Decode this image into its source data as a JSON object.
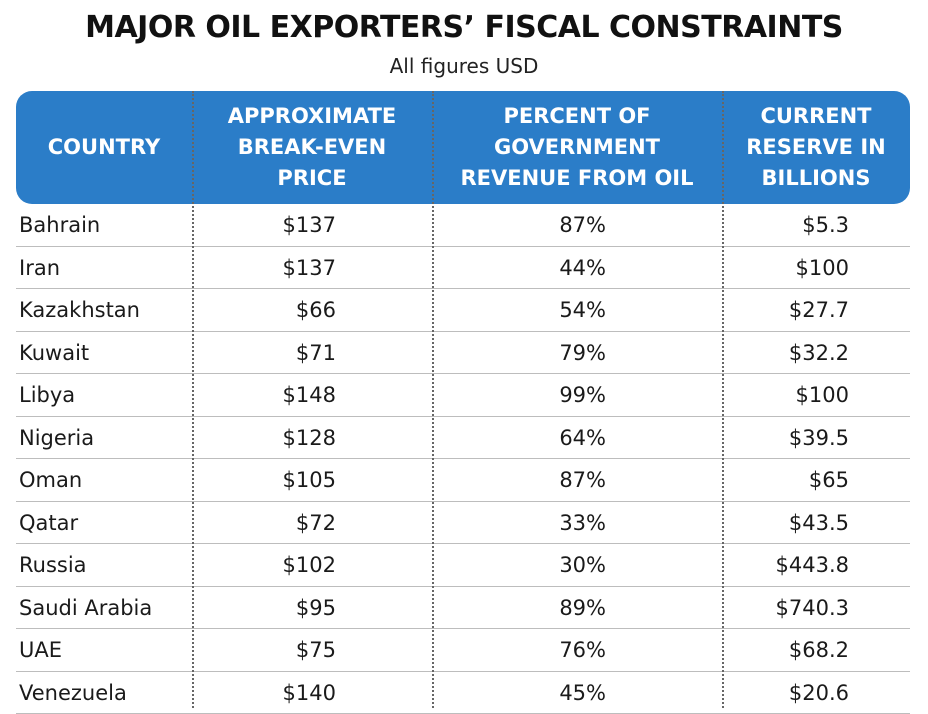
{
  "chart_data": {
    "type": "table",
    "title": "MAJOR OIL EXPORTERS’ FISCAL CONSTRAINTS",
    "subtitle": "All figures USD",
    "columns": [
      "COUNTRY",
      "APPROXIMATE\nBREAK-EVEN\nPRICE",
      "PERCENT OF\nGOVERNMENT\nREVENUE FROM OIL",
      "CURRENT\nRESERVE IN\nBILLIONS"
    ],
    "rows": [
      {
        "country": "Bahrain",
        "price": "$137",
        "pct": "87%",
        "reserve": "$5.3"
      },
      {
        "country": "Iran",
        "price": "$137",
        "pct": "44%",
        "reserve": "$100"
      },
      {
        "country": "Kazakhstan",
        "price": "$66",
        "pct": "54%",
        "reserve": "$27.7"
      },
      {
        "country": "Kuwait",
        "price": "$71",
        "pct": "79%",
        "reserve": "$32.2"
      },
      {
        "country": "Libya",
        "price": "$148",
        "pct": "99%",
        "reserve": "$100"
      },
      {
        "country": "Nigeria",
        "price": "$128",
        "pct": "64%",
        "reserve": "$39.5"
      },
      {
        "country": "Oman",
        "price": "$105",
        "pct": "87%",
        "reserve": "$65"
      },
      {
        "country": "Qatar",
        "price": "$72",
        "pct": "33%",
        "reserve": "$43.5"
      },
      {
        "country": "Russia",
        "price": "$102",
        "pct": "30%",
        "reserve": "$443.8"
      },
      {
        "country": "Saudi Arabia",
        "price": "$95",
        "pct": "89%",
        "reserve": "$740.3"
      },
      {
        "country": "UAE",
        "price": "$75",
        "pct": "76%",
        "reserve": "$68.2"
      },
      {
        "country": "Venezuela",
        "price": "$140",
        "pct": "45%",
        "reserve": "$20.6"
      }
    ],
    "header_color": "#2b7dc8"
  }
}
